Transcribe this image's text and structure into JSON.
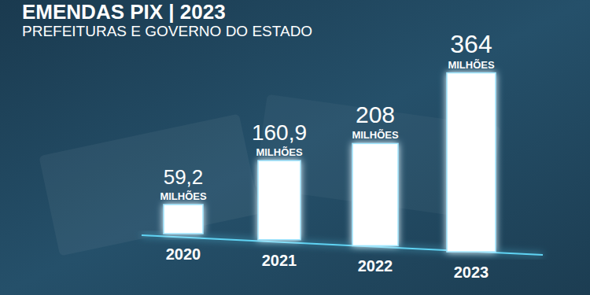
{
  "chart_data": {
    "type": "bar",
    "title": "EMENDAS PIX | 2023",
    "subtitle": "PREFEITURAS E GOVERNO DO ESTADO",
    "categories": [
      "2020",
      "2021",
      "2022",
      "2023"
    ],
    "values": [
      59.2,
      160.9,
      208,
      364
    ],
    "value_labels": [
      "59,2\nMILHÕES",
      "160,9\nMILHÕES",
      "208\nMILHÕES",
      "364\nMILHÕES"
    ],
    "color": "#ffffff",
    "ylim": [
      0,
      400
    ],
    "data_labels": true,
    "tick_labels": false
  }
}
